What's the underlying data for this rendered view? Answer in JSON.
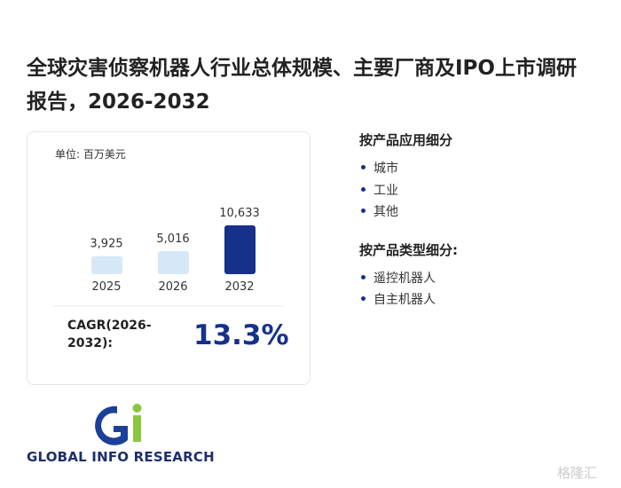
{
  "header": {
    "title": "全球灾害侦察机器人行业总体规模、主要厂商及IPO上市调研报告，2026-2032"
  },
  "chart_data": {
    "type": "bar",
    "unit": "单位: 百万美元",
    "categories": [
      "2025",
      "2026",
      "2032"
    ],
    "values": [
      3925,
      5016,
      10633
    ],
    "value_labels": [
      "3,925",
      "5,016",
      "10,633"
    ],
    "colors": [
      "#d6e8f8",
      "#d6e8f8",
      "#15318a"
    ],
    "cagr_label": "CAGR(2026-2032):",
    "cagr_value": "13.3%"
  },
  "segments": [
    {
      "heading": "按产品应用细分",
      "items": [
        "城市",
        "工业",
        "其他"
      ]
    },
    {
      "heading": "按产品类型细分:",
      "items": [
        "遥控机器人",
        "自主机器人"
      ]
    }
  ],
  "logo": {
    "text": "GLOBAL INFO RESEARCH"
  },
  "watermark": "格隆汇"
}
